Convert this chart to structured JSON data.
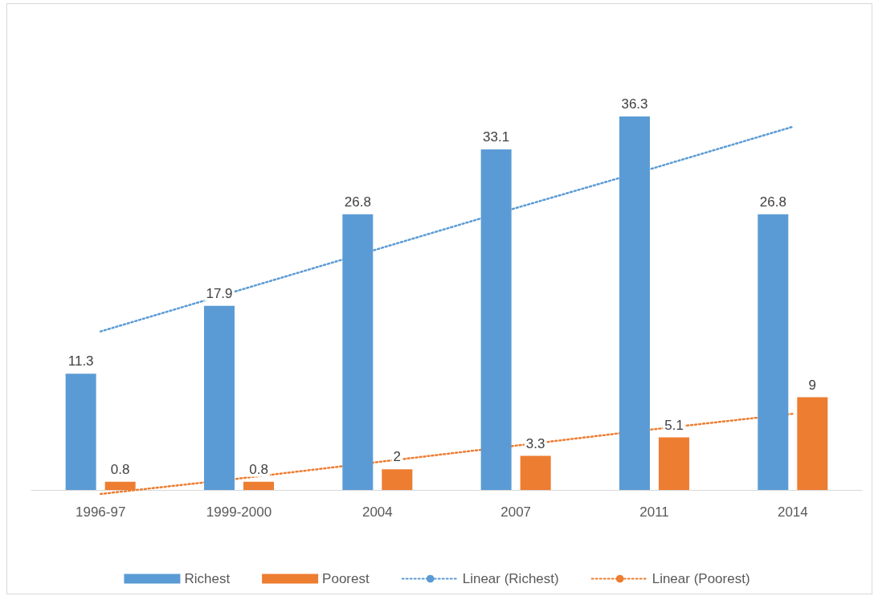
{
  "chart_data": {
    "type": "bar",
    "categories": [
      "1996-97",
      "1999-2000",
      "2004",
      "2007",
      "2011",
      "2014"
    ],
    "series": [
      {
        "name": "Richest",
        "color": "#5b9bd5",
        "values": [
          11.3,
          17.9,
          26.8,
          33.1,
          36.3,
          26.8
        ],
        "value_labels": [
          "11.3",
          "17.9",
          "26.8",
          "33.1",
          "36.3",
          "26.8"
        ]
      },
      {
        "name": "Poorest",
        "color": "#ed7d31",
        "values": [
          0.8,
          0.8,
          2,
          3.3,
          5.1,
          9
        ],
        "value_labels": [
          "0.8",
          "0.8",
          "2",
          "3.3",
          "5.1",
          "9"
        ]
      },
      {
        "name": "Linear (Richest)",
        "type": "line",
        "color": "#5b9bd5",
        "line_style": "dotted",
        "marker": "none",
        "values": [
          15.4,
          19.4,
          23.4,
          27.4,
          31.3,
          35.3
        ]
      },
      {
        "name": "Linear (Poorest)",
        "type": "line",
        "color": "#ed7d31",
        "line_style": "dotted",
        "marker": "none",
        "values": [
          -0.4,
          1.1,
          2.7,
          4.3,
          5.9,
          7.4
        ]
      }
    ],
    "grid": false,
    "legend": "bottom"
  }
}
